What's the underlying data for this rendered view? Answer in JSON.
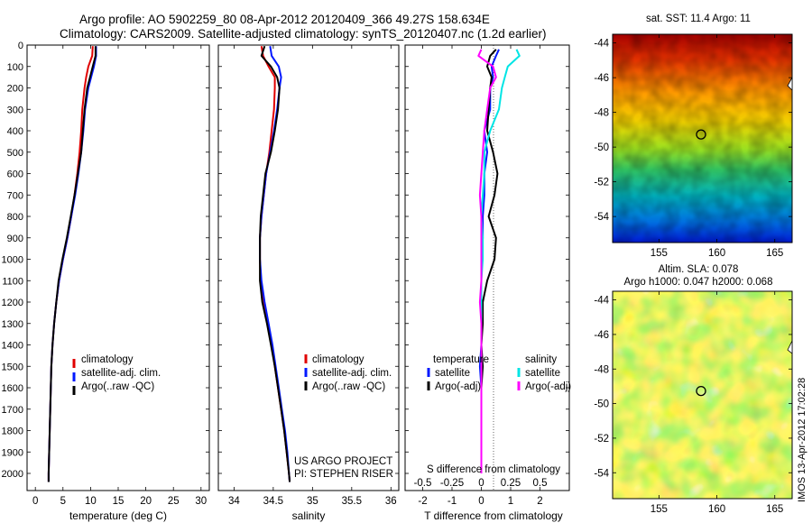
{
  "header": {
    "line1": "Argo profile: AO 5902259_80 08-Apr-2012 20120409_366 49.27S 158.634E",
    "line2": "Climatology: CARS2009. Satellite-adjusted climatology: synTS_20120407.nc (1.2d earlier)"
  },
  "colors": {
    "climatology": "#e00000",
    "satellite": "#0018ff",
    "argo": "#000000",
    "sal_satellite": "#00e5e5",
    "sal_argo": "#ff00ff"
  },
  "chart_data": [
    {
      "type": "line",
      "panel": "temperature",
      "xlabel": "temperature (deg C)",
      "ylabel": "",
      "xlim": [
        -1.5,
        31.5
      ],
      "ylim": [
        2080,
        0
      ],
      "xticks": [
        0,
        5,
        10,
        15,
        20,
        25,
        30
      ],
      "yticks": [
        0,
        100,
        200,
        300,
        400,
        500,
        600,
        700,
        800,
        900,
        1000,
        1100,
        1200,
        1300,
        1400,
        1500,
        1600,
        1700,
        1800,
        1900,
        2000
      ],
      "depth": [
        5,
        50,
        100,
        150,
        200,
        300,
        400,
        500,
        600,
        700,
        800,
        900,
        1000,
        1100,
        1200,
        1300,
        1400,
        1500,
        1600,
        1700,
        1800,
        1900,
        2000,
        2040
      ],
      "series": [
        {
          "name": "climatology",
          "color_key": "climatology",
          "values": [
            10.4,
            10.3,
            9.6,
            9.2,
            8.9,
            8.5,
            8.3,
            8.0,
            7.6,
            7.1,
            6.5,
            5.8,
            5.0,
            4.3,
            3.8,
            3.4,
            3.1,
            2.9,
            2.8,
            2.7,
            2.6,
            2.5,
            2.4,
            2.4
          ]
        },
        {
          "name": "satellite-adj. clim.",
          "color_key": "satellite",
          "values": [
            11.0,
            11.0,
            10.6,
            10.1,
            9.6,
            9.0,
            8.7,
            8.3,
            7.8,
            7.2,
            6.5,
            5.8,
            5.0,
            4.3,
            3.8,
            3.4,
            3.1,
            2.9,
            2.8,
            2.7,
            2.6,
            2.5,
            2.4,
            2.4
          ]
        },
        {
          "name": "Argo(..raw -QC)",
          "color_key": "argo",
          "values": [
            10.9,
            10.9,
            10.4,
            9.9,
            9.4,
            8.9,
            8.6,
            8.3,
            7.7,
            7.1,
            6.4,
            5.7,
            4.9,
            4.2,
            3.8,
            3.4,
            3.1,
            2.9,
            2.8,
            2.7,
            2.6,
            2.5,
            2.4,
            2.4
          ]
        }
      ]
    },
    {
      "type": "line",
      "panel": "salinity",
      "xlabel": "salinity",
      "xlim": [
        33.8,
        36.1
      ],
      "ylim": [
        2080,
        0
      ],
      "xticks": [
        34,
        34.5,
        35,
        35.5,
        36
      ],
      "depth": [
        5,
        50,
        100,
        150,
        200,
        300,
        400,
        500,
        600,
        700,
        800,
        900,
        1000,
        1100,
        1200,
        1300,
        1400,
        1500,
        1600,
        1700,
        1800,
        1900,
        2000,
        2040
      ],
      "series": [
        {
          "name": "climatology",
          "color_key": "climatology",
          "values": [
            34.35,
            34.37,
            34.44,
            34.52,
            34.52,
            34.51,
            34.48,
            34.45,
            34.41,
            34.38,
            34.35,
            34.33,
            34.33,
            34.34,
            34.38,
            34.43,
            34.48,
            34.52,
            34.56,
            34.6,
            34.64,
            34.67,
            34.7,
            34.71
          ]
        },
        {
          "name": "satellite-adj. clim.",
          "color_key": "satellite",
          "values": [
            34.46,
            34.48,
            34.57,
            34.6,
            34.58,
            34.55,
            34.51,
            34.46,
            34.41,
            34.38,
            34.35,
            34.33,
            34.33,
            34.35,
            34.39,
            34.44,
            34.49,
            34.53,
            34.57,
            34.61,
            34.65,
            34.68,
            34.7,
            34.71
          ]
        },
        {
          "name": "Argo(..raw -QC)",
          "color_key": "argo",
          "values": [
            34.39,
            34.35,
            34.47,
            34.55,
            34.58,
            34.56,
            34.52,
            34.47,
            34.4,
            34.37,
            34.34,
            34.33,
            34.33,
            34.33,
            34.36,
            34.42,
            34.47,
            34.52,
            34.56,
            34.6,
            34.64,
            34.67,
            34.7,
            34.71
          ]
        }
      ],
      "annotation": [
        "US ARGO PROJECT",
        "PI: STEPHEN RISER"
      ]
    },
    {
      "type": "line",
      "panel": "difference",
      "xlabel": "T difference from climatology",
      "xlabel_top": "S difference from climatology",
      "xlim": [
        -2.6,
        3.0
      ],
      "ylim": [
        2080,
        0
      ],
      "xticks": [
        -2,
        -1,
        0,
        1,
        2
      ],
      "xticks_top": [
        "-0.5",
        "-0.25",
        "0",
        "0.25",
        "0.5"
      ],
      "depth": [
        20,
        50,
        100,
        150,
        200,
        300,
        400,
        500,
        600,
        700,
        800,
        900,
        1000,
        1100,
        1200,
        1300,
        1400,
        1500,
        1600,
        1700,
        1800,
        1900,
        2000
      ],
      "series": [
        {
          "name": "temperature satellite",
          "color_key": "satellite",
          "values": [
            0.6,
            0.5,
            0.35,
            0.4,
            0.3,
            0.3,
            0.1,
            0.2,
            0.1,
            0.1,
            0.05,
            0.05,
            0.0,
            0.0,
            0.0,
            0.0,
            0.0,
            -0.05,
            0.0,
            0.0,
            0.0,
            0.0,
            0.0
          ]
        },
        {
          "name": "temperature Argo(-adj)",
          "color_key": "argo",
          "values": [
            0.5,
            0.3,
            0.2,
            0.35,
            0.3,
            0.25,
            0.2,
            0.4,
            0.55,
            0.45,
            0.25,
            0.5,
            0.45,
            0.2,
            0.05,
            0.05,
            0.0,
            0.05,
            0.0,
            0.0,
            0.0,
            0.0,
            0.0
          ]
        },
        {
          "name": "salinity satellite",
          "color_key": "sal_satellite",
          "values": [
            1.2,
            1.3,
            0.9,
            0.8,
            0.7,
            0.6,
            0.3,
            0.1,
            0.1,
            0.05,
            0.0,
            0.05,
            0.05,
            0.0,
            0.0,
            0.0,
            0.0,
            0.0,
            0.0,
            0.0,
            0.0,
            0.0,
            0.0
          ]
        },
        {
          "name": "salinity Argo(-adj)",
          "color_key": "sal_argo",
          "values": [
            0.0,
            -0.1,
            0.4,
            0.5,
            0.3,
            0.2,
            0.1,
            0.05,
            0.0,
            -0.05,
            0.0,
            0.0,
            0.0,
            0.0,
            -0.05,
            0.0,
            0.0,
            0.0,
            0.0,
            0.0,
            0.0,
            0.0,
            0.0
          ]
        }
      ]
    },
    {
      "type": "heatmap",
      "panel": "sst map",
      "title": "sat. SST: 11.4  Argo: 11",
      "xticks": [
        155,
        160,
        165
      ],
      "yticks": [
        -44,
        -46,
        -48,
        -50,
        -52,
        -54
      ],
      "xlim": [
        151,
        166.5
      ],
      "ylim": [
        -55.5,
        -43.5
      ],
      "float_position": [
        158.634,
        -49.27
      ]
    },
    {
      "type": "heatmap",
      "panel": "sla map",
      "title": [
        "Altim. SLA: 0.078",
        "Argo h1000: 0.047 h2000: 0.068"
      ],
      "xticks": [
        155,
        160,
        165
      ],
      "yticks": [
        -44,
        -46,
        -48,
        -50,
        -52,
        -54
      ],
      "xlim": [
        151,
        166.5
      ],
      "ylim": [
        -55.5,
        -43.5
      ],
      "float_position": [
        158.634,
        -49.27
      ]
    }
  ],
  "panel1_legend": {
    "clim": "climatology",
    "sat": "satellite-adj. clim.",
    "argo": "Argo(..raw -QC)"
  },
  "panel2_legend": {
    "clim": "climatology",
    "sat": "satellite-adj. clim.",
    "argo": "Argo(..raw -QC)"
  },
  "panel3_legend": {
    "temp_head": "temperature",
    "temp_sat": "satellite",
    "temp_argo": "Argo(-adj)",
    "sal_head": "salinity",
    "sal_sat": "satellite",
    "sal_argo": "Argo(-adj)"
  },
  "stamp": "IMOS 13-Apr-2012 17:02:28"
}
